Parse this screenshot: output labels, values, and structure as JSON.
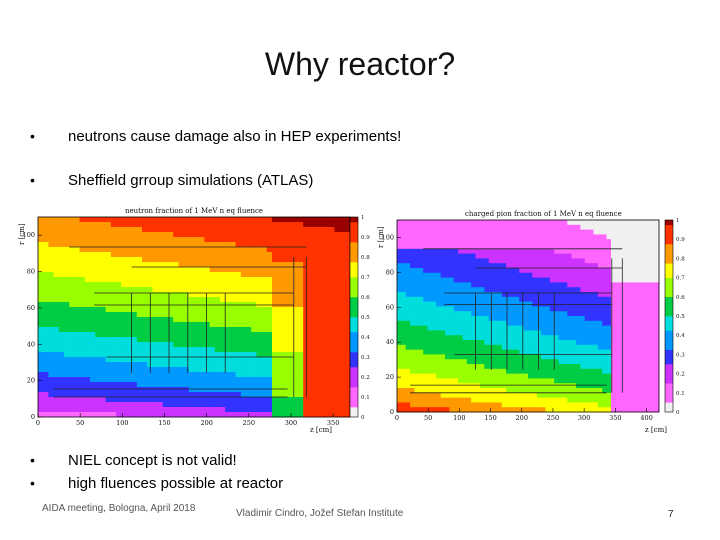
{
  "slide": {
    "title": "Why reactor?",
    "bullets_top": [
      "neutrons cause damage also in HEP experiments!",
      "Sheffield grroup simulations (ATLAS)"
    ],
    "bullets_bottom": [
      "NIEL concept is not valid!",
      "high fluences possible at reactor"
    ],
    "bullet_glyph": "•",
    "footer": {
      "left": "AIDA meeting, Bologna, April 2018",
      "center": "Vladimir Cindro, Jožef Stefan Institute",
      "page": "7"
    }
  },
  "chart_data": [
    {
      "type": "heatmap",
      "title": "neutron fraction of 1 MeV n eq fluence",
      "xlabel": "z [cm]",
      "ylabel": "r [cm]",
      "x_ticks": [
        "0",
        "50",
        "100",
        "150",
        "200",
        "250",
        "300",
        "350"
      ],
      "y_ticks": [
        "0",
        "20",
        "40",
        "60",
        "80",
        "100"
      ],
      "colorbar_ticks": [
        "0",
        "0.1",
        "0.2",
        "0.3",
        "0.4",
        "0.5",
        "0.6",
        "0.7",
        "0.8",
        "0.9",
        "1"
      ]
    },
    {
      "type": "heatmap",
      "title": "charged pion fraction of 1 MeV n eq fluence",
      "xlabel": "z [cm]",
      "ylabel": "r [cm]",
      "x_ticks": [
        "0",
        "50",
        "100",
        "150",
        "200",
        "250",
        "300",
        "350",
        "400"
      ],
      "y_ticks": [
        "0",
        "20",
        "40",
        "60",
        "80",
        "100"
      ],
      "colorbar_ticks": [
        "0",
        "0.1",
        "0.2",
        "0.3",
        "0.4",
        "0.5",
        "0.6",
        "0.7",
        "0.8",
        "0.9",
        "1"
      ]
    }
  ],
  "colors": {
    "scale": [
      "#f0f0f0",
      "#ff66ff",
      "#cc33ff",
      "#3333ff",
      "#0099ff",
      "#00dddd",
      "#00cc44",
      "#99ff00",
      "#ffff00",
      "#ff9900",
      "#ff3300",
      "#990000"
    ]
  }
}
